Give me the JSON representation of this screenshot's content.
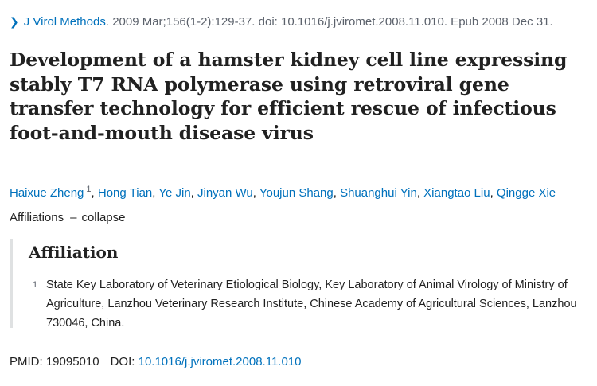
{
  "citation": {
    "journal": "J Virol Methods",
    "details": "2009 Mar;156(1-2):129-37. doi: 10.1016/j.jviromet.2008.11.010. Epub 2008 Dec 31."
  },
  "article": {
    "title": "Development of a hamster kidney cell line expressing stably T7 RNA polymerase using retroviral gene transfer technology for efficient rescue of infectious foot-and-mouth disease virus"
  },
  "authors": [
    {
      "name": "Haixue Zheng",
      "aff": "1"
    },
    {
      "name": "Hong Tian"
    },
    {
      "name": "Ye Jin"
    },
    {
      "name": "Jinyan Wu"
    },
    {
      "name": "Youjun Shang"
    },
    {
      "name": "Shuanghui Yin"
    },
    {
      "name": "Xiangtao Liu"
    },
    {
      "name": "Qingge Xie"
    }
  ],
  "affiliations_toggle": {
    "label": "Affiliations",
    "action": "collapse"
  },
  "affiliation": {
    "heading": "Affiliation",
    "items": [
      {
        "num": "1",
        "text": "State Key Laboratory of Veterinary Etiological Biology, Key Laboratory of Animal Virology of Ministry of Agriculture, Lanzhou Veterinary Research Institute, Chinese Academy of Agricultural Sciences, Lanzhou 730046, China."
      }
    ]
  },
  "identifiers": {
    "pmid_label": "PMID:",
    "pmid": "19095010",
    "doi_label": "DOI:",
    "doi": "10.1016/j.jviromet.2008.11.010"
  }
}
